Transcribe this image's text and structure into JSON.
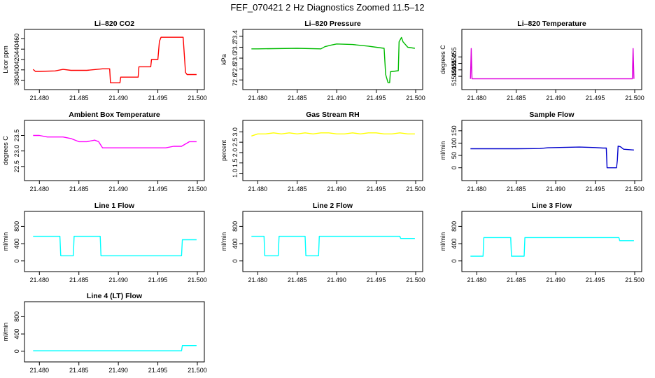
{
  "figure": {
    "title": "FEF_070421  2 Hz Diagnostics Zoomed 11.5–12"
  },
  "chart_data": [
    {
      "type": "line",
      "title": "Li–820 CO2",
      "ylabel": "Licor ppm",
      "color": "#ff0000",
      "xlim": [
        21.479,
        21.5
      ],
      "ylim": [
        370,
        470
      ],
      "xticks": [
        "21.480",
        "21.485",
        "21.490",
        "21.495",
        "21.500"
      ],
      "yticks": [
        "380",
        "400",
        "420",
        "440",
        "460"
      ],
      "series": [
        {
          "x": [
            21.4792,
            21.4795,
            21.48,
            21.482,
            21.483,
            21.484,
            21.486,
            21.488,
            21.4885,
            21.4889,
            21.489,
            21.49,
            21.4902,
            21.4903,
            21.4925,
            21.4926,
            21.4941,
            21.4942,
            21.495,
            21.4952,
            21.4954,
            21.4982,
            21.4985,
            21.4987,
            21.4999
          ],
          "y": [
            401,
            397,
            397,
            398,
            401,
            399,
            399,
            402,
            402,
            402,
            375,
            375,
            375,
            386,
            386,
            406,
            406,
            420,
            420,
            455,
            463,
            463,
            395,
            391,
            391
          ]
        }
      ]
    },
    {
      "type": "line",
      "title": "Li–820 Pressure",
      "ylabel": "kPa",
      "color": "#00bb00",
      "xlim": [
        21.479,
        21.5
      ],
      "ylim": [
        72.5,
        73.45
      ],
      "xticks": [
        "21.480",
        "21.485",
        "21.490",
        "21.495",
        "21.500"
      ],
      "yticks": [
        "72.6",
        "72.8",
        "73.0",
        "73.2",
        "73.4"
      ],
      "series": [
        {
          "x": [
            21.4792,
            21.48,
            21.485,
            21.488,
            21.4885,
            21.4893,
            21.49,
            21.492,
            21.494,
            21.495,
            21.496,
            21.4962,
            21.4965,
            21.4967,
            21.4968,
            21.4978,
            21.4979,
            21.4982,
            21.4984,
            21.499,
            21.4999
          ],
          "y": [
            73.17,
            73.17,
            73.18,
            73.17,
            73.21,
            73.24,
            73.26,
            73.25,
            73.22,
            73.2,
            73.18,
            72.7,
            72.55,
            72.55,
            72.75,
            72.77,
            73.3,
            73.38,
            73.3,
            73.2,
            73.18
          ]
        }
      ]
    },
    {
      "type": "line",
      "title": "Li–820 Temperature",
      "ylabel": "degrees C",
      "color": "#dd00dd",
      "xlim": [
        21.479,
        21.5
      ],
      "ylim": [
        51.433,
        51.473
      ],
      "xticks": [
        "21.480",
        "21.485",
        "21.490",
        "21.495",
        "21.500"
      ],
      "yticks": [
        "51.440",
        "51.445",
        "51.450",
        "51.455"
      ],
      "series": [
        {
          "x": [
            21.4792,
            21.4793,
            21.4794,
            21.4795,
            21.4996,
            21.4997,
            21.4998,
            21.4999
          ],
          "y": [
            51.4381,
            51.4615,
            51.4381,
            51.4381,
            51.4381,
            51.4381,
            51.4615,
            51.4381
          ]
        }
      ]
    },
    {
      "type": "line",
      "title": "Ambient Box Temperature",
      "ylabel": "degrees C",
      "color": "#ff00ff",
      "xlim": [
        21.479,
        21.5
      ],
      "ylim": [
        22.18,
        23.85
      ],
      "xticks": [
        "21.480",
        "21.485",
        "21.490",
        "21.495",
        "21.500"
      ],
      "yticks": [
        "22.5",
        "23.0",
        "23.5"
      ],
      "series": [
        {
          "x": [
            21.4792,
            21.48,
            21.481,
            21.482,
            21.483,
            21.484,
            21.485,
            21.486,
            21.487,
            21.4875,
            21.488,
            21.489,
            21.49,
            21.492,
            21.494,
            21.496,
            21.497,
            21.498,
            21.499,
            21.4999
          ],
          "y": [
            23.5,
            23.5,
            23.45,
            23.45,
            23.45,
            23.4,
            23.3,
            23.3,
            23.35,
            23.3,
            23.1,
            23.1,
            23.1,
            23.1,
            23.1,
            23.1,
            23.15,
            23.15,
            23.3,
            23.3
          ]
        }
      ]
    },
    {
      "type": "line",
      "title": "Gas Stream RH",
      "ylabel": "percent",
      "color": "#ffff00",
      "xlim": [
        21.479,
        21.5
      ],
      "ylim": [
        0.85,
        3.35
      ],
      "xticks": [
        "21.480",
        "21.485",
        "21.490",
        "21.495",
        "21.500"
      ],
      "yticks": [
        "1.0",
        "1.5",
        "2.0",
        "2.5",
        "3.0"
      ],
      "series": [
        {
          "x": [
            21.4792,
            21.48,
            21.481,
            21.482,
            21.483,
            21.484,
            21.485,
            21.486,
            21.487,
            21.488,
            21.489,
            21.49,
            21.491,
            21.492,
            21.493,
            21.494,
            21.495,
            21.496,
            21.497,
            21.498,
            21.499,
            21.4999
          ],
          "y": [
            2.8,
            2.9,
            2.9,
            2.95,
            2.9,
            2.95,
            2.9,
            2.95,
            2.9,
            2.95,
            2.95,
            2.9,
            2.9,
            2.95,
            2.9,
            2.95,
            2.95,
            2.9,
            2.9,
            2.95,
            2.9,
            2.9
          ]
        }
      ]
    },
    {
      "type": "line",
      "title": "Sample Flow",
      "ylabel": "ml/min",
      "color": "#0000cc",
      "xlim": [
        21.479,
        21.5
      ],
      "ylim": [
        -35,
        175
      ],
      "xticks": [
        "21.480",
        "21.485",
        "21.490",
        "21.495",
        "21.500"
      ],
      "yticks": [
        "0",
        "50",
        "100",
        "150"
      ],
      "series": [
        {
          "x": [
            21.4792,
            21.48,
            21.485,
            21.488,
            21.489,
            21.49,
            21.493,
            21.495,
            21.496,
            21.4964,
            21.4965,
            21.4977,
            21.4978,
            21.4979,
            21.4982,
            21.4986,
            21.4999
          ],
          "y": [
            77,
            77,
            77,
            78,
            81,
            82,
            84,
            82,
            80,
            80,
            0,
            0,
            30,
            88,
            85,
            75,
            72
          ]
        }
      ]
    },
    {
      "type": "line",
      "title": "Line 1 Flow",
      "ylabel": "ml/min",
      "color": "#00ffff",
      "xlim": [
        21.479,
        21.5
      ],
      "ylim": [
        -150,
        1050
      ],
      "xticks": [
        "21.480",
        "21.485",
        "21.490",
        "21.495",
        "21.500"
      ],
      "yticks": [
        "0",
        "400",
        "800"
      ],
      "series": [
        {
          "x": [
            21.4792,
            21.4826,
            21.4827,
            21.4843,
            21.4844,
            21.4877,
            21.4878,
            21.498,
            21.4981,
            21.4999
          ],
          "y": [
            570,
            570,
            120,
            120,
            570,
            570,
            120,
            120,
            490,
            490
          ]
        }
      ]
    },
    {
      "type": "line",
      "title": "Line 2 Flow",
      "ylabel": "ml/min",
      "color": "#00ffff",
      "xlim": [
        21.479,
        21.5
      ],
      "ylim": [
        -150,
        1050
      ],
      "xticks": [
        "21.480",
        "21.485",
        "21.490",
        "21.495",
        "21.500"
      ],
      "yticks": [
        "0",
        "400",
        "800"
      ],
      "series": [
        {
          "x": [
            21.4792,
            21.4808,
            21.4809,
            21.4826,
            21.4827,
            21.486,
            21.4861,
            21.4877,
            21.4878,
            21.498,
            21.4981,
            21.4999
          ],
          "y": [
            570,
            570,
            120,
            120,
            570,
            570,
            120,
            120,
            570,
            570,
            520,
            520
          ]
        }
      ]
    },
    {
      "type": "line",
      "title": "Line 3 Flow",
      "ylabel": "ml/min",
      "color": "#00ffff",
      "xlim": [
        21.479,
        21.5
      ],
      "ylim": [
        -150,
        1050
      ],
      "xticks": [
        "21.480",
        "21.485",
        "21.490",
        "21.495",
        "21.500"
      ],
      "yticks": [
        "0",
        "400",
        "800"
      ],
      "series": [
        {
          "x": [
            21.4792,
            21.4808,
            21.4809,
            21.4843,
            21.4844,
            21.486,
            21.4861,
            21.498,
            21.4981,
            21.4999
          ],
          "y": [
            110,
            110,
            540,
            540,
            110,
            110,
            540,
            540,
            470,
            470
          ]
        }
      ]
    },
    {
      "type": "line",
      "title": "Line 4 (LT) Flow",
      "ylabel": "ml/min",
      "color": "#00ffff",
      "xlim": [
        21.479,
        21.5
      ],
      "ylim": [
        -150,
        1050
      ],
      "xticks": [
        "21.480",
        "21.485",
        "21.490",
        "21.495",
        "21.500"
      ],
      "yticks": [
        "0",
        "400",
        "800"
      ],
      "series": [
        {
          "x": [
            21.4792,
            21.498,
            21.4981,
            21.4999
          ],
          "y": [
            10,
            10,
            130,
            130
          ]
        }
      ]
    }
  ]
}
